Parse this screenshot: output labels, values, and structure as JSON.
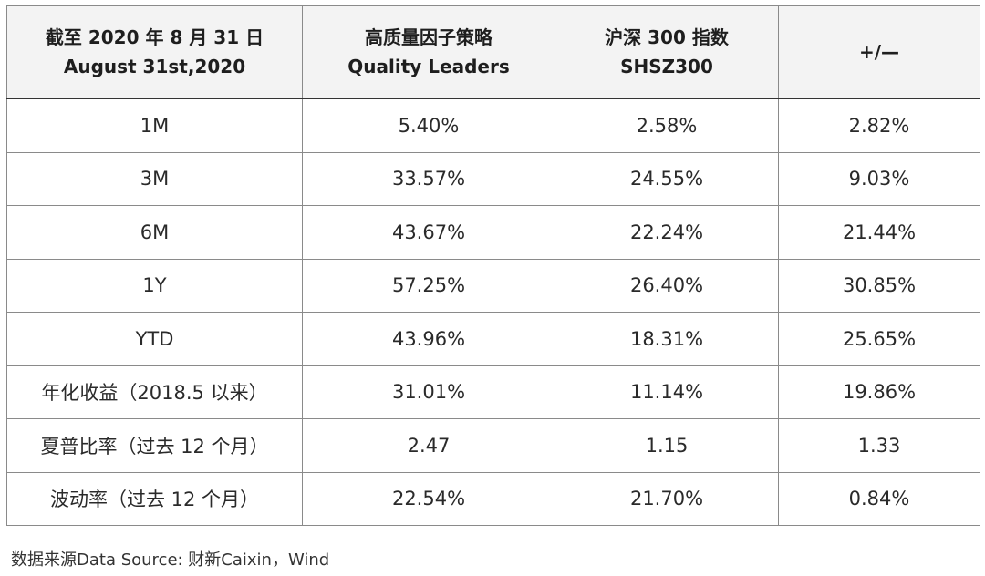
{
  "table": {
    "headers": [
      {
        "line1": "截至 2020 年 8 月 31 日",
        "line2": "August 31st,2020"
      },
      {
        "line1": "高质量因子策略",
        "line2": "Quality Leaders"
      },
      {
        "line1": "沪深 300 指数",
        "line2": "SHSZ300"
      },
      {
        "line1": "+/—",
        "line2": ""
      }
    ],
    "rows": [
      [
        "1M",
        "5.40%",
        "2.58%",
        "2.82%"
      ],
      [
        "3M",
        "33.57%",
        "24.55%",
        "9.03%"
      ],
      [
        "6M",
        "43.67%",
        "22.24%",
        "21.44%"
      ],
      [
        "1Y",
        "57.25%",
        "26.40%",
        "30.85%"
      ],
      [
        "YTD",
        "43.96%",
        "18.31%",
        "25.65%"
      ],
      [
        "年化收益（2018.5 以来）",
        "31.01%",
        "11.14%",
        "19.86%"
      ],
      [
        "夏普比率（过去 12 个月）",
        "2.47",
        "1.15",
        "1.33"
      ],
      [
        "波动率（过去 12 个月）",
        "22.54%",
        "21.70%",
        "0.84%"
      ]
    ]
  },
  "footer": {
    "source": "数据来源Data Source: 财新Caixin，Wind"
  }
}
